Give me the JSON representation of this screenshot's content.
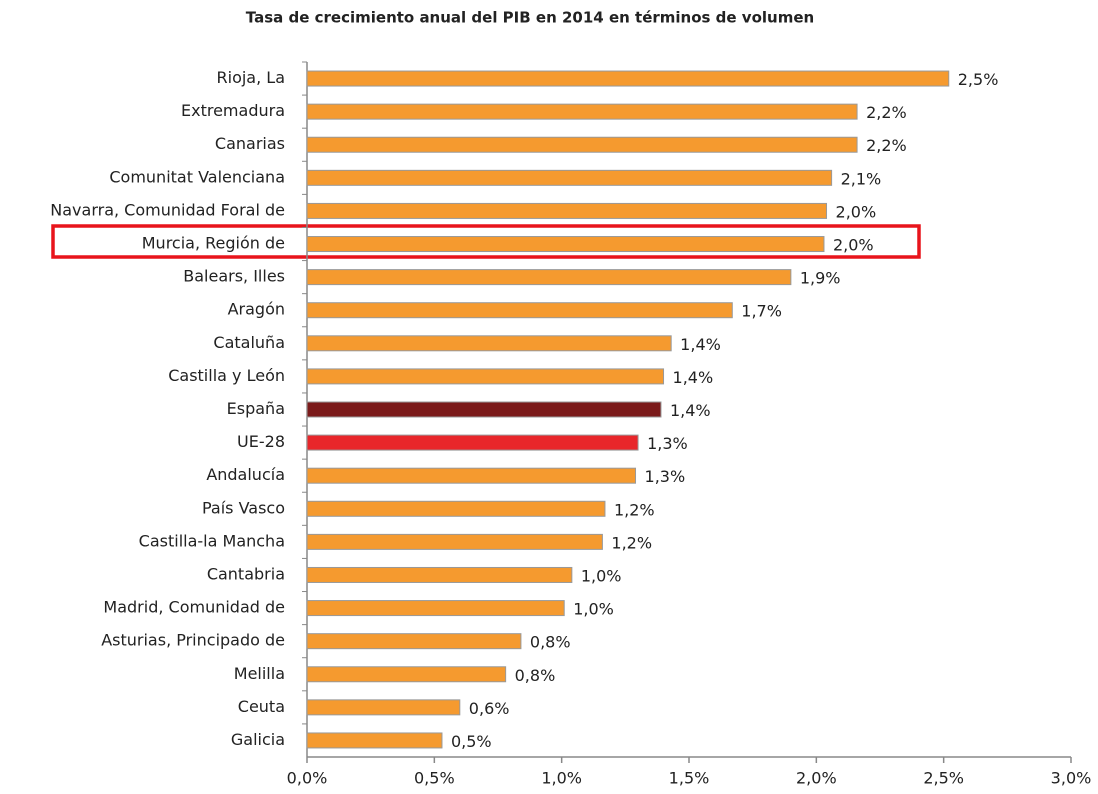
{
  "chart_data": {
    "type": "bar",
    "orientation": "horizontal",
    "title": "Tasa de crecimiento anual del PIB en 2014 en términos de volumen",
    "categories": [
      "Rioja, La",
      "Extremadura",
      "Canarias",
      "Comunitat Valenciana",
      "Navarra, Comunidad Foral de",
      "Murcia, Región de",
      "Balears, Illes",
      "Aragón",
      "Cataluña",
      "Castilla y León",
      "España",
      "UE-28",
      "Andalucía",
      "País Vasco",
      "Castilla-la Mancha",
      "Cantabria",
      "Madrid, Comunidad de",
      "Asturias, Principado de",
      "Melilla",
      "Ceuta",
      "Galicia"
    ],
    "values": [
      2.52,
      2.16,
      2.16,
      2.06,
      2.04,
      2.03,
      1.9,
      1.67,
      1.43,
      1.4,
      1.39,
      1.3,
      1.29,
      1.17,
      1.16,
      1.04,
      1.01,
      0.84,
      0.78,
      0.6,
      0.53
    ],
    "value_labels": [
      "2,5%",
      "2,2%",
      "2,2%",
      "2,1%",
      "2,0%",
      "2,0%",
      "1,9%",
      "1,7%",
      "1,4%",
      "1,4%",
      "1,4%",
      "1,3%",
      "1,3%",
      "1,2%",
      "1,2%",
      "1,0%",
      "1,0%",
      "0,8%",
      "0,8%",
      "0,6%",
      "0,5%"
    ],
    "colors": [
      "#f59a2f",
      "#f59a2f",
      "#f59a2f",
      "#f59a2f",
      "#f59a2f",
      "#f59a2f",
      "#f59a2f",
      "#f59a2f",
      "#f59a2f",
      "#f59a2f",
      "#7b1a1a",
      "#e8262a",
      "#f59a2f",
      "#f59a2f",
      "#f59a2f",
      "#f59a2f",
      "#f59a2f",
      "#f59a2f",
      "#f59a2f",
      "#f59a2f",
      "#f59a2f"
    ],
    "xlim": [
      0,
      3
    ],
    "xticks": [
      {
        "value": 0,
        "label": "0,0%"
      },
      {
        "value": 0.5,
        "label": "0,5%"
      },
      {
        "value": 1,
        "label": "1,0%"
      },
      {
        "value": 1.5,
        "label": "1,5%"
      },
      {
        "value": 2,
        "label": "2,0%"
      },
      {
        "value": 2.5,
        "label": "2,5%"
      },
      {
        "value": 3,
        "label": "3,0%"
      }
    ]
  }
}
